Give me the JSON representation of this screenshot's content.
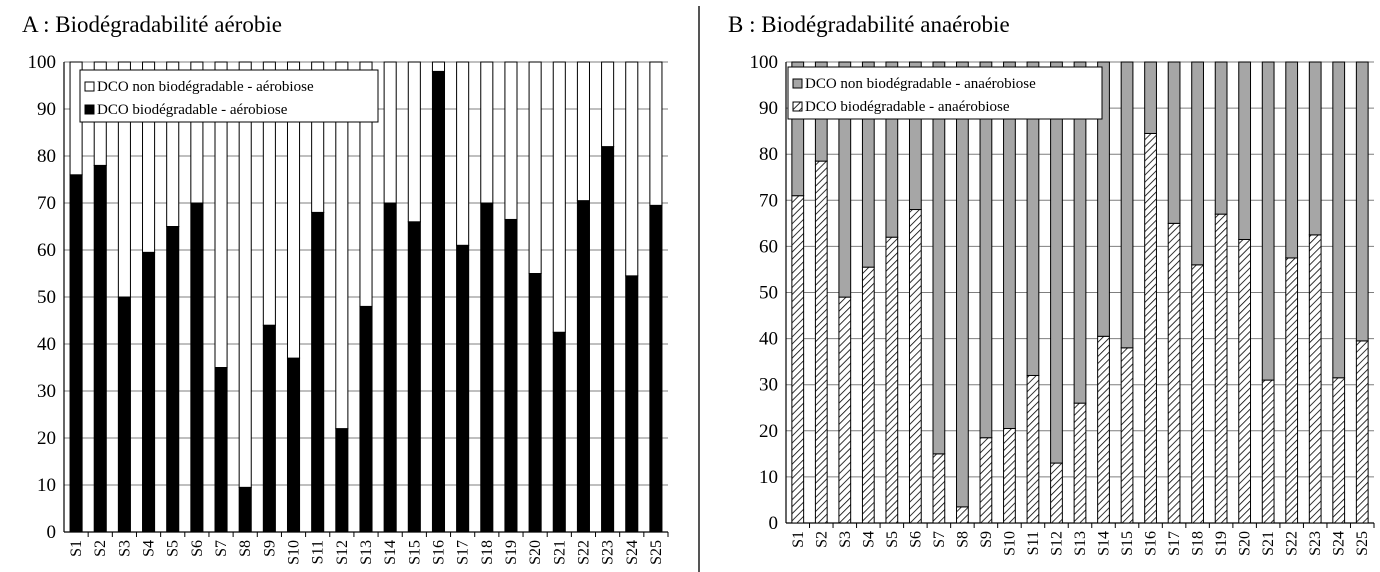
{
  "chart_data": [
    {
      "type": "bar",
      "stacked": true,
      "title": "A : Biodégradabilité aérobie",
      "categories": [
        "S1",
        "S2",
        "S3",
        "S4",
        "S5",
        "S6",
        "S7",
        "S8",
        "S9",
        "S10",
        "S11",
        "S12",
        "S13",
        "S14",
        "S15",
        "S16",
        "S17",
        "S18",
        "S19",
        "S20",
        "S21",
        "S22",
        "S23",
        "S24",
        "S25"
      ],
      "series": [
        {
          "name": "DCO biodégradable - aérobiose",
          "color": "#000000",
          "pattern": "solid",
          "values": [
            76,
            78,
            50,
            59.5,
            65,
            70,
            35,
            9.5,
            44,
            37,
            68,
            22,
            48,
            70,
            66,
            98,
            61,
            70,
            66.5,
            55,
            42.5,
            70.5,
            82,
            54.5,
            69.5
          ]
        },
        {
          "name": "DCO non biodégradable - aérobiose",
          "color": "#ffffff",
          "pattern": "solid",
          "values": [
            24,
            22,
            50,
            40.5,
            35,
            30,
            65,
            90.5,
            56,
            63,
            32,
            78,
            52,
            30,
            34,
            2,
            39,
            30,
            33.5,
            45,
            57.5,
            29.5,
            18,
            45.5,
            30.5
          ]
        }
      ],
      "ylim": [
        0,
        100
      ],
      "yticks": [
        0,
        10,
        20,
        30,
        40,
        50,
        60,
        70,
        80,
        90,
        100
      ],
      "grid": true,
      "legend": "top-left"
    },
    {
      "type": "bar",
      "stacked": true,
      "title": "B : Biodégradabilité anaérobie",
      "categories": [
        "S1",
        "S2",
        "S3",
        "S4",
        "S5",
        "S6",
        "S7",
        "S8",
        "S9",
        "S10",
        "S11",
        "S12",
        "S13",
        "S14",
        "S15",
        "S16",
        "S17",
        "S18",
        "S19",
        "S20",
        "S21",
        "S22",
        "S23",
        "S24",
        "S25"
      ],
      "series": [
        {
          "name": "DCO biodégradable - anaérobiose",
          "color": "#ffffff",
          "pattern": "hatch",
          "values": [
            71,
            78.5,
            49,
            55.5,
            62,
            68,
            15,
            3.5,
            18.5,
            20.5,
            32,
            13,
            26,
            40.5,
            38,
            84.5,
            65,
            56,
            67,
            61.5,
            31,
            57.5,
            62.5,
            31.5,
            39.5
          ]
        },
        {
          "name": "DCO non biodégradable - anaérobiose",
          "color": "#a6a6a6",
          "pattern": "solid",
          "values": [
            29,
            21.5,
            51,
            44.5,
            38,
            32,
            85,
            96.5,
            81.5,
            79.5,
            68,
            87,
            74,
            59.5,
            62,
            15.5,
            35,
            44,
            33,
            38.5,
            69,
            42.5,
            37.5,
            68.5,
            60.5
          ]
        }
      ],
      "ylim": [
        0,
        100
      ],
      "yticks": [
        0,
        10,
        20,
        30,
        40,
        50,
        60,
        70,
        80,
        90,
        100
      ],
      "grid": true,
      "legend": "top-left"
    }
  ]
}
